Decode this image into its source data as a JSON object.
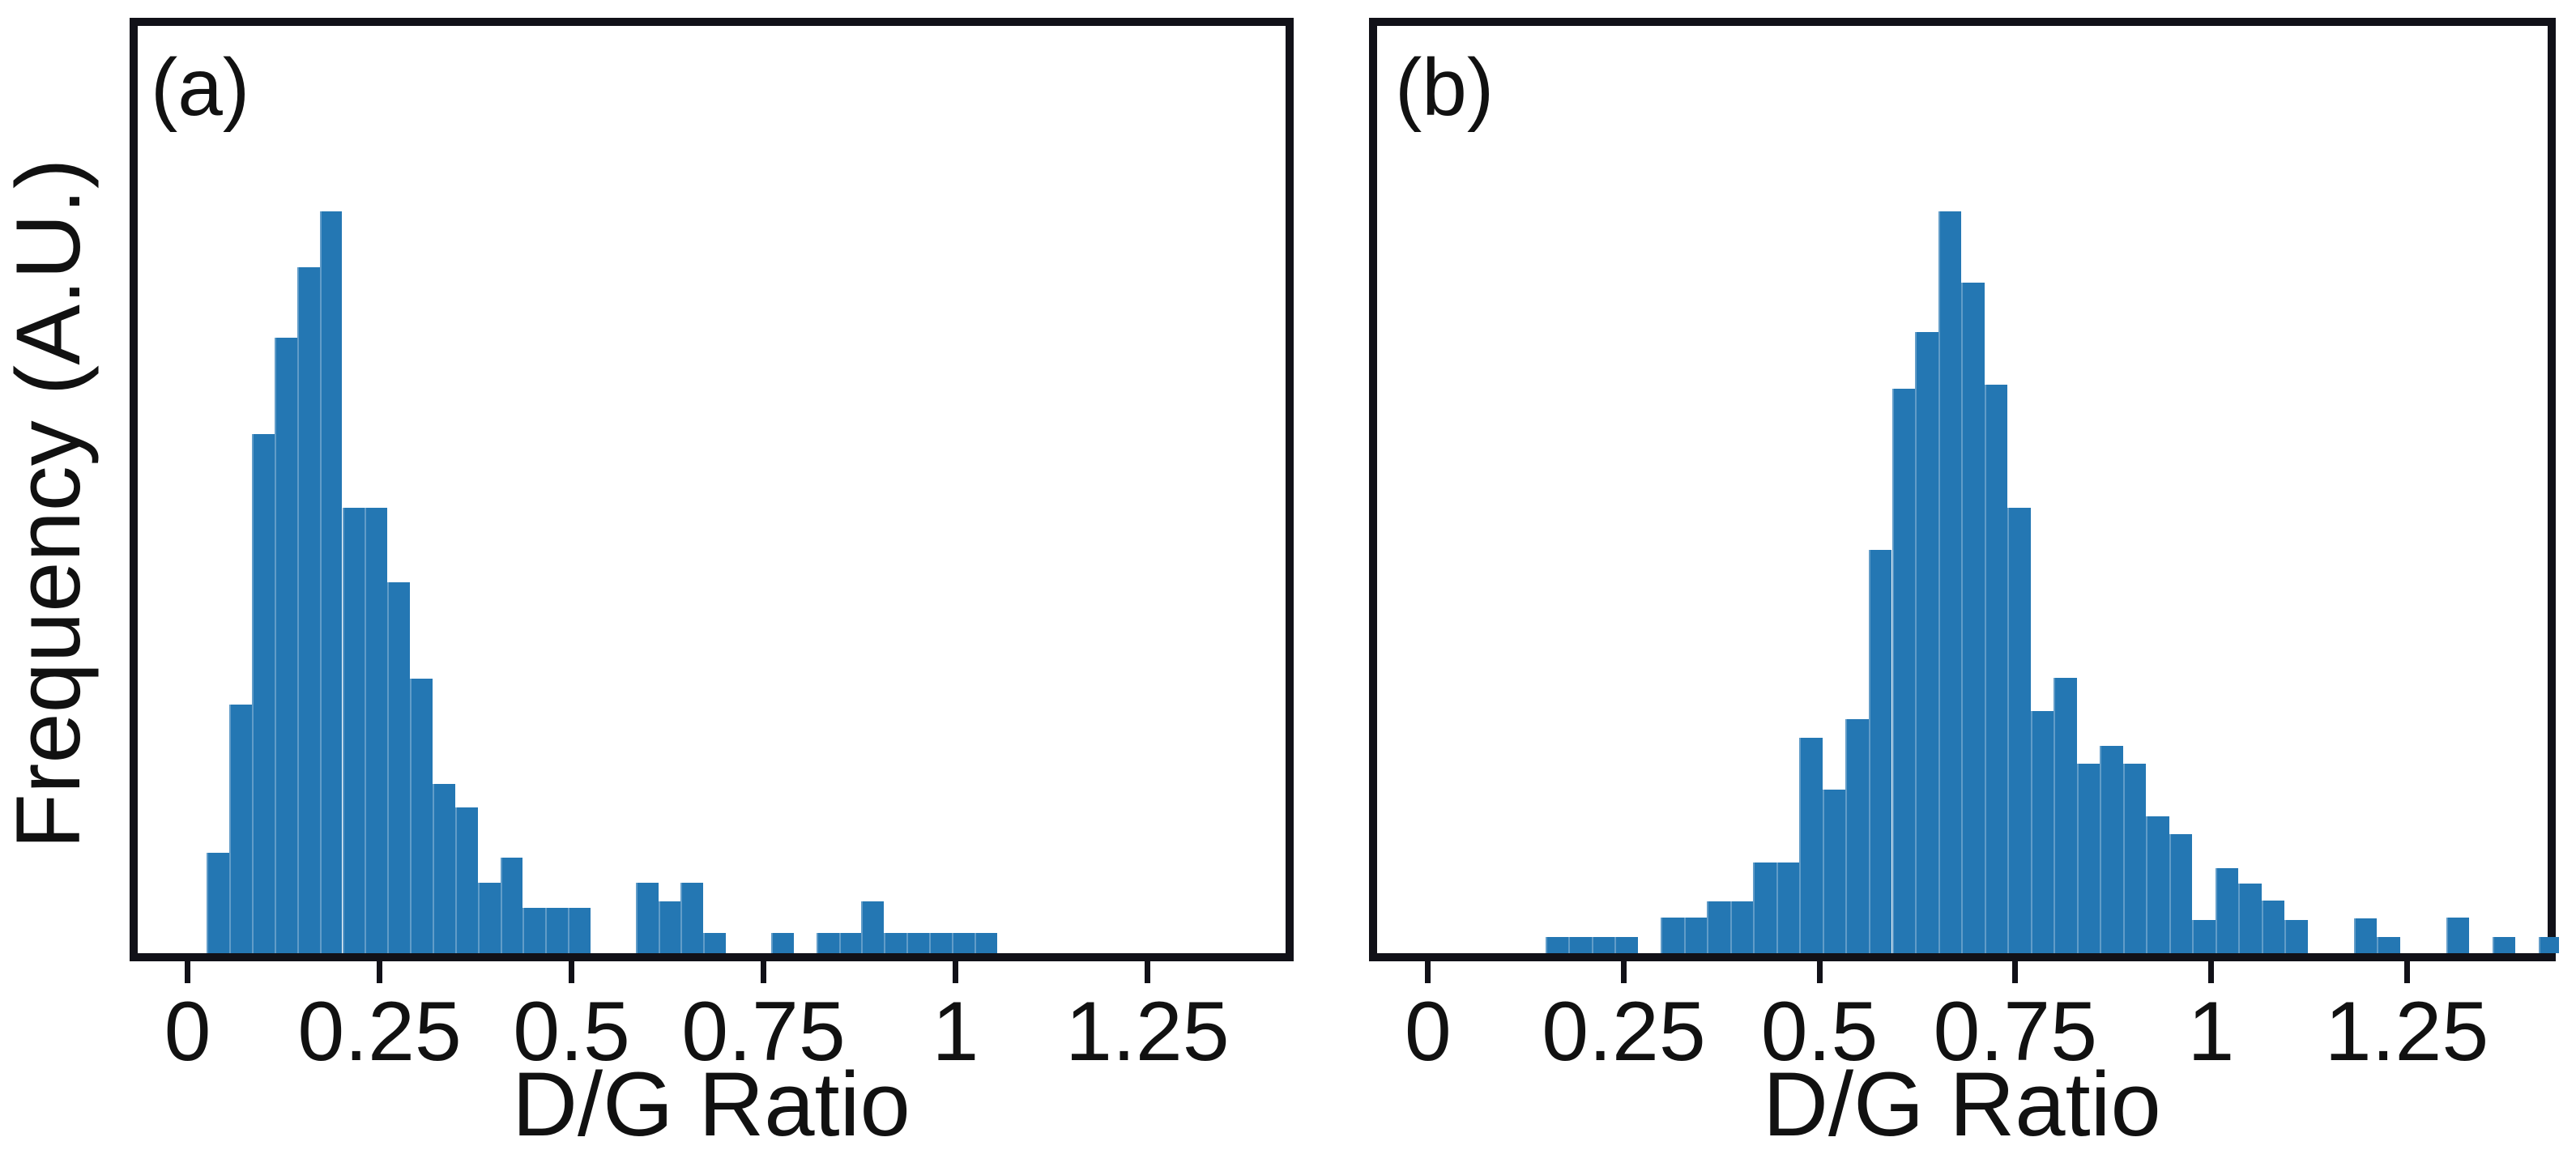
{
  "figure": {
    "ylabel": "Frequency (A.U.)",
    "background_color": "#ffffff",
    "bar_color": "#2477b3",
    "axis_color": "#111118"
  },
  "chart_data": [
    {
      "type": "bar",
      "subtype": "histogram",
      "panel_label": "(a)",
      "xlabel": "D/G Ratio",
      "ylabel": "Frequency (A.U.)",
      "xlim": [
        -0.065,
        1.43
      ],
      "grid": false,
      "legend": "none",
      "y_axis": "unlabeled arbitrary units, no ticks",
      "peak_height_frac": 0.8,
      "bin_width": 0.0294,
      "x_ticks": [
        {
          "v": 0,
          "label": "0"
        },
        {
          "v": 0.25,
          "label": "0.25"
        },
        {
          "v": 0.5,
          "label": "0.5"
        },
        {
          "v": 0.75,
          "label": "0.75"
        },
        {
          "v": 1,
          "label": "1"
        },
        {
          "v": 1.25,
          "label": "1.25"
        }
      ],
      "bars": [
        {
          "x0": 0.025,
          "x1": 0.0544,
          "h": 0.135
        },
        {
          "x0": 0.0544,
          "x1": 0.0838,
          "h": 0.335
        },
        {
          "x0": 0.0838,
          "x1": 0.1132,
          "h": 0.7
        },
        {
          "x0": 0.1132,
          "x1": 0.1426,
          "h": 0.83
        },
        {
          "x0": 0.1426,
          "x1": 0.172,
          "h": 0.925
        },
        {
          "x0": 0.172,
          "x1": 0.2014,
          "h": 1.0
        },
        {
          "x0": 0.2014,
          "x1": 0.2308,
          "h": 0.6
        },
        {
          "x0": 0.2308,
          "x1": 0.2602,
          "h": 0.6
        },
        {
          "x0": 0.2602,
          "x1": 0.2896,
          "h": 0.5
        },
        {
          "x0": 0.2896,
          "x1": 0.319,
          "h": 0.37
        },
        {
          "x0": 0.319,
          "x1": 0.3484,
          "h": 0.228
        },
        {
          "x0": 0.3484,
          "x1": 0.3778,
          "h": 0.196
        },
        {
          "x0": 0.3778,
          "x1": 0.4072,
          "h": 0.095
        },
        {
          "x0": 0.4072,
          "x1": 0.4366,
          "h": 0.129
        },
        {
          "x0": 0.4366,
          "x1": 0.466,
          "h": 0.061
        },
        {
          "x0": 0.466,
          "x1": 0.4954,
          "h": 0.061
        },
        {
          "x0": 0.4954,
          "x1": 0.5248,
          "h": 0.061
        },
        {
          "x0": 0.5836,
          "x1": 0.613,
          "h": 0.095
        },
        {
          "x0": 0.613,
          "x1": 0.6424,
          "h": 0.07
        },
        {
          "x0": 0.6424,
          "x1": 0.6718,
          "h": 0.095
        },
        {
          "x0": 0.6718,
          "x1": 0.7012,
          "h": 0.027
        },
        {
          "x0": 0.76,
          "x1": 0.7894,
          "h": 0.027
        },
        {
          "x0": 0.8188,
          "x1": 0.8482,
          "h": 0.027
        },
        {
          "x0": 0.8482,
          "x1": 0.8776,
          "h": 0.027
        },
        {
          "x0": 0.8776,
          "x1": 0.907,
          "h": 0.07
        },
        {
          "x0": 0.907,
          "x1": 0.9364,
          "h": 0.027
        },
        {
          "x0": 0.9364,
          "x1": 0.9658,
          "h": 0.027
        },
        {
          "x0": 0.9658,
          "x1": 0.9952,
          "h": 0.027
        },
        {
          "x0": 0.9952,
          "x1": 1.0246,
          "h": 0.027
        },
        {
          "x0": 1.0246,
          "x1": 1.054,
          "h": 0.027
        }
      ]
    },
    {
      "type": "bar",
      "subtype": "histogram",
      "panel_label": "(b)",
      "xlabel": "D/G Ratio",
      "ylabel": "Frequency (A.U.)",
      "xlim": [
        -0.065,
        1.43
      ],
      "grid": false,
      "legend": "none",
      "y_axis": "unlabeled arbitrary units, no ticks",
      "peak_height_frac": 0.8,
      "bin_width": 0.0295,
      "x_ticks": [
        {
          "v": 0,
          "label": "0"
        },
        {
          "v": 0.25,
          "label": "0.25"
        },
        {
          "v": 0.5,
          "label": "0.5"
        },
        {
          "v": 0.75,
          "label": "0.75"
        },
        {
          "v": 1,
          "label": "1"
        },
        {
          "v": 1.25,
          "label": "1.25"
        }
      ],
      "bars": [
        {
          "x0": 0.15,
          "x1": 0.1795,
          "h": 0.022
        },
        {
          "x0": 0.1795,
          "x1": 0.209,
          "h": 0.022
        },
        {
          "x0": 0.209,
          "x1": 0.2385,
          "h": 0.022
        },
        {
          "x0": 0.2385,
          "x1": 0.268,
          "h": 0.022
        },
        {
          "x0": 0.2975,
          "x1": 0.327,
          "h": 0.048
        },
        {
          "x0": 0.327,
          "x1": 0.3565,
          "h": 0.048
        },
        {
          "x0": 0.3565,
          "x1": 0.386,
          "h": 0.07
        },
        {
          "x0": 0.386,
          "x1": 0.4155,
          "h": 0.07
        },
        {
          "x0": 0.4155,
          "x1": 0.445,
          "h": 0.122
        },
        {
          "x0": 0.445,
          "x1": 0.4745,
          "h": 0.122
        },
        {
          "x0": 0.4745,
          "x1": 0.504,
          "h": 0.29
        },
        {
          "x0": 0.504,
          "x1": 0.5335,
          "h": 0.22
        },
        {
          "x0": 0.5335,
          "x1": 0.563,
          "h": 0.316
        },
        {
          "x0": 0.563,
          "x1": 0.5925,
          "h": 0.544
        },
        {
          "x0": 0.5925,
          "x1": 0.622,
          "h": 0.761
        },
        {
          "x0": 0.622,
          "x1": 0.6515,
          "h": 0.837
        },
        {
          "x0": 0.6515,
          "x1": 0.681,
          "h": 1.0
        },
        {
          "x0": 0.681,
          "x1": 0.7105,
          "h": 0.904
        },
        {
          "x0": 0.7105,
          "x1": 0.74,
          "h": 0.766
        },
        {
          "x0": 0.74,
          "x1": 0.7695,
          "h": 0.6
        },
        {
          "x0": 0.7695,
          "x1": 0.799,
          "h": 0.326
        },
        {
          "x0": 0.799,
          "x1": 0.8285,
          "h": 0.371
        },
        {
          "x0": 0.8285,
          "x1": 0.858,
          "h": 0.255
        },
        {
          "x0": 0.858,
          "x1": 0.8875,
          "h": 0.279
        },
        {
          "x0": 0.8875,
          "x1": 0.917,
          "h": 0.255
        },
        {
          "x0": 0.917,
          "x1": 0.9465,
          "h": 0.184
        },
        {
          "x0": 0.9465,
          "x1": 0.976,
          "h": 0.161
        },
        {
          "x0": 0.976,
          "x1": 1.0055,
          "h": 0.045
        },
        {
          "x0": 1.0055,
          "x1": 1.035,
          "h": 0.115
        },
        {
          "x0": 1.035,
          "x1": 1.0645,
          "h": 0.094
        },
        {
          "x0": 1.0645,
          "x1": 1.094,
          "h": 0.071
        },
        {
          "x0": 1.094,
          "x1": 1.1235,
          "h": 0.045
        },
        {
          "x0": 1.1825,
          "x1": 1.212,
          "h": 0.047
        },
        {
          "x0": 1.212,
          "x1": 1.2415,
          "h": 0.022
        },
        {
          "x0": 1.3005,
          "x1": 1.33,
          "h": 0.048
        },
        {
          "x0": 1.3595,
          "x1": 1.389,
          "h": 0.022
        },
        {
          "x0": 1.4185,
          "x1": 1.445,
          "h": 0.022
        }
      ]
    }
  ]
}
